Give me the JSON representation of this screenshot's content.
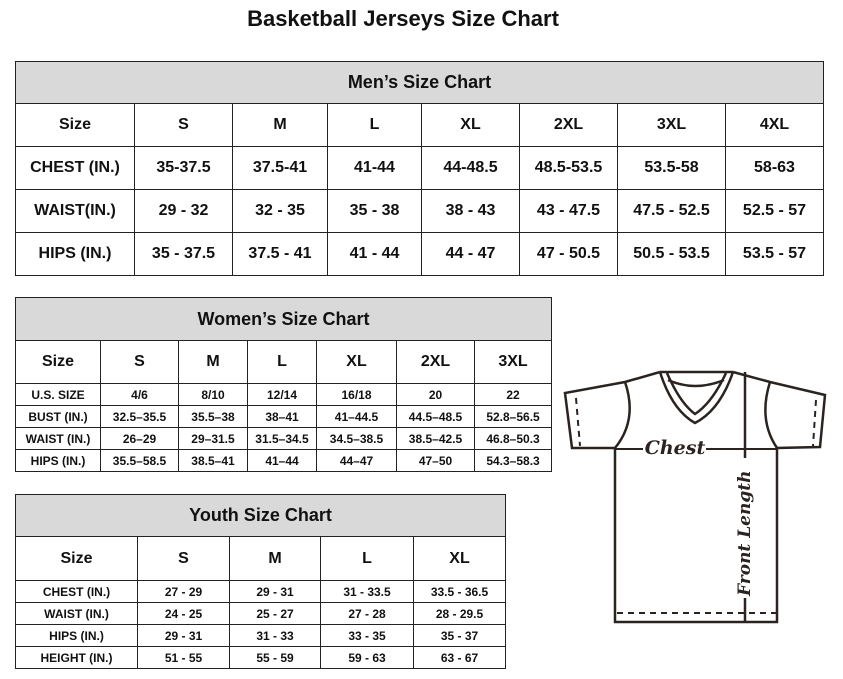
{
  "title": "Basketball Jerseys Size Chart",
  "men": {
    "heading": "Men’s Size Chart",
    "rows": [
      [
        "Size",
        "S",
        "M",
        "L",
        "XL",
        "2XL",
        "3XL",
        "4XL"
      ],
      [
        "CHEST (IN.)",
        "35-37.5",
        "37.5-41",
        "41-44",
        "44-48.5",
        "48.5-53.5",
        "53.5-58",
        "58-63"
      ],
      [
        "WAIST(IN.)",
        "29 - 32",
        "32 - 35",
        "35 - 38",
        "38 - 43",
        "43 - 47.5",
        "47.5 - 52.5",
        "52.5 - 57"
      ],
      [
        "HIPS (IN.)",
        "35 - 37.5",
        "37.5 - 41",
        "41 - 44",
        "44 - 47",
        "47 - 50.5",
        "50.5 - 53.5",
        "53.5 - 57"
      ]
    ]
  },
  "women": {
    "heading": "Women’s Size Chart",
    "rows": [
      [
        "Size",
        "S",
        "M",
        "L",
        "XL",
        "2XL",
        "3XL"
      ],
      [
        "U.S. SIZE",
        "4/6",
        "8/10",
        "12/14",
        "16/18",
        "20",
        "22"
      ],
      [
        "BUST (IN.)",
        "32.5–35.5",
        "35.5–38",
        "38–41",
        "41–44.5",
        "44.5–48.5",
        "52.8–56.5"
      ],
      [
        "WAIST (IN.)",
        "26–29",
        "29–31.5",
        "31.5–34.5",
        "34.5–38.5",
        "38.5–42.5",
        "46.8–50.3"
      ],
      [
        "HIPS (IN.)",
        "35.5–58.5",
        "38.5–41",
        "41–44",
        "44–47",
        "47–50",
        "54.3–58.3"
      ]
    ]
  },
  "youth": {
    "heading": "Youth Size Chart",
    "rows": [
      [
        "Size",
        "S",
        "M",
        "L",
        "XL"
      ],
      [
        "CHEST (IN.)",
        "27 - 29",
        "29 - 31",
        "31 - 33.5",
        "33.5 - 36.5"
      ],
      [
        "WAIST (IN.)",
        "24 - 25",
        "25 - 27",
        "27 - 28",
        "28 - 29.5"
      ],
      [
        "HIPS (IN.)",
        "29 - 31",
        "31 - 33",
        "33 - 35",
        "35 - 37"
      ],
      [
        "HEIGHT (IN.)",
        "51 - 55",
        "55 - 59",
        "59 - 63",
        "63 - 67"
      ]
    ]
  },
  "diagram": {
    "chest_label": "Chest",
    "length_label": "Front Length"
  }
}
